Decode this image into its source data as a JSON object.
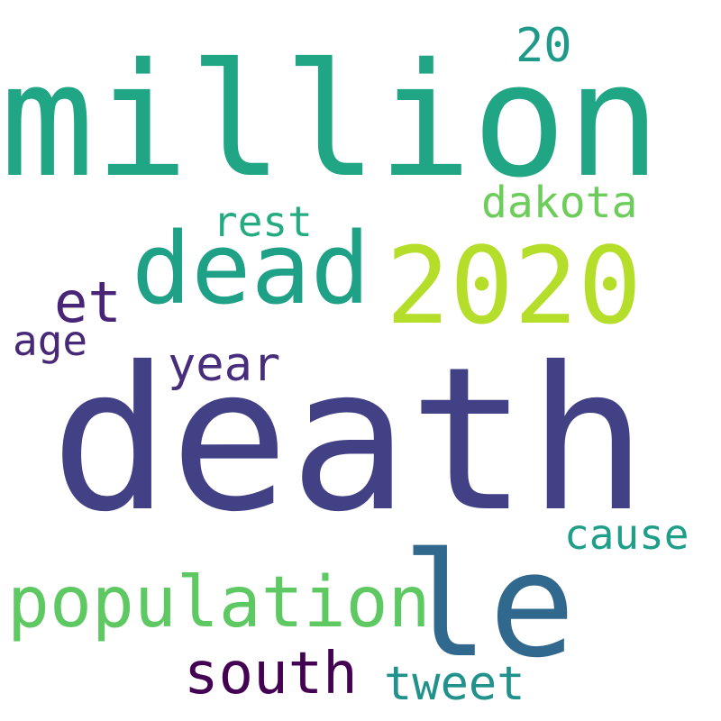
{
  "words": [
    {
      "id": "million",
      "text": "million",
      "color": "#21a685"
    },
    {
      "id": "death",
      "text": "death",
      "color": "#424186"
    },
    {
      "id": "2020",
      "text": "2020",
      "color": "#b5de2b"
    },
    {
      "id": "dead",
      "text": "dead",
      "color": "#1fa187"
    },
    {
      "id": "le",
      "text": "le",
      "color": "#31688e"
    },
    {
      "id": "population",
      "text": "population",
      "color": "#5ec962"
    },
    {
      "id": "south",
      "text": "south",
      "color": "#440154"
    },
    {
      "id": "tweet",
      "text": "tweet",
      "color": "#21918c"
    },
    {
      "id": "cause",
      "text": "cause",
      "color": "#1f9e89"
    },
    {
      "id": "dakota",
      "text": "dakota",
      "color": "#6ccd5a"
    },
    {
      "id": "rest",
      "text": "rest",
      "color": "#25ab82"
    },
    {
      "id": "year",
      "text": "year",
      "color": "#472d7b"
    },
    {
      "id": "et",
      "text": "et",
      "color": "#482576"
    },
    {
      "id": "age",
      "text": "age",
      "color": "#482878"
    },
    {
      "id": "20",
      "text": "20",
      "color": "#1f9a8a"
    }
  ]
}
